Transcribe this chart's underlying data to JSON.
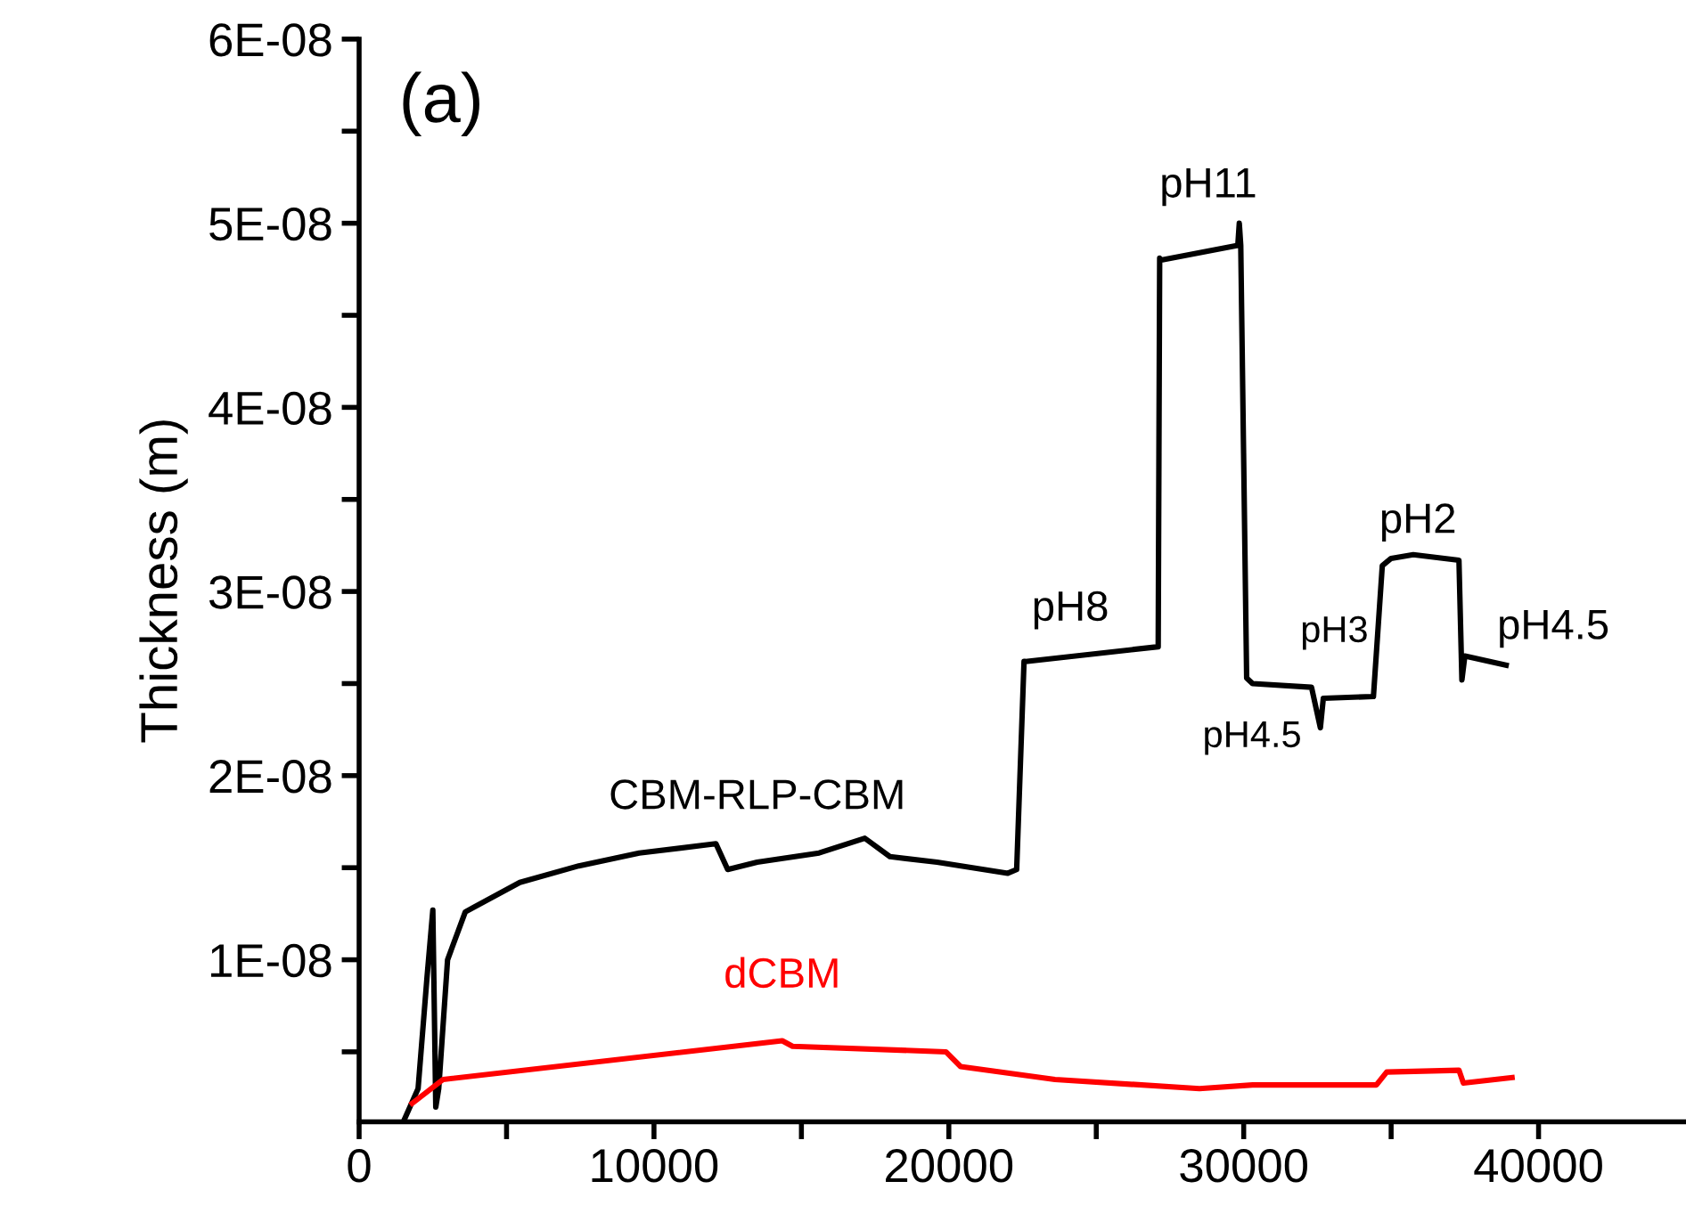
{
  "chart_data": {
    "type": "line",
    "ylabel": "Thickness (m)",
    "xlim": [
      0,
      45000
    ],
    "ylim": [
      1.2e-09,
      6e-08
    ],
    "xticks": [
      0,
      {
        "value": 5000,
        "label": null
      },
      10000,
      {
        "value": 15000,
        "label": null
      },
      20000,
      {
        "value": 25000,
        "label": null
      },
      30000,
      {
        "value": 35000,
        "label": null
      },
      40000
    ],
    "yticks": [
      {
        "value": 5e-09,
        "label": null
      },
      {
        "value": 1e-08,
        "label": "1E-08"
      },
      {
        "value": 1.5e-08,
        "label": null
      },
      {
        "value": 2e-08,
        "label": "2E-08"
      },
      {
        "value": 2.5e-08,
        "label": null
      },
      {
        "value": 3e-08,
        "label": "3E-08"
      },
      {
        "value": 3.5e-08,
        "label": null
      },
      {
        "value": 4e-08,
        "label": "4E-08"
      },
      {
        "value": 4.5e-08,
        "label": null
      },
      {
        "value": 5e-08,
        "label": "5E-08"
      },
      {
        "value": 5.5e-08,
        "label": null
      },
      {
        "value": 6e-08,
        "label": "6E-08"
      }
    ],
    "grid": false,
    "legend": false,
    "marker": "none",
    "line_style": "solid",
    "series": [
      {
        "name": "CBM-RLP-CBM",
        "color": "#000000",
        "x": [
          1500,
          2000,
          2300,
          2500,
          2600,
          2700,
          3000,
          3600,
          5450,
          7450,
          9500,
          12100,
          12500,
          13500,
          15600,
          17150,
          18000,
          19600,
          22000,
          22300,
          22550,
          22600,
          27100,
          27150,
          27200,
          29800,
          29850,
          29900,
          30100,
          30300,
          32300,
          32600,
          32700,
          34400,
          34700,
          35000,
          35750,
          37300,
          37400,
          37500,
          38900
        ],
        "values": [
          1.2e-09,
          3e-09,
          9e-09,
          1.27e-08,
          2e-09,
          3e-09,
          1e-08,
          1.26e-08,
          1.42e-08,
          1.51e-08,
          1.58e-08,
          1.63e-08,
          1.49e-08,
          1.53e-08,
          1.58e-08,
          1.66e-08,
          1.56e-08,
          1.53e-08,
          1.47e-08,
          1.49e-08,
          2.62e-08,
          2.62e-08,
          2.7e-08,
          4.81e-08,
          4.8e-08,
          4.88e-08,
          5e-08,
          4.88e-08,
          2.53e-08,
          2.5e-08,
          2.48e-08,
          2.26e-08,
          2.42e-08,
          2.43e-08,
          3.14e-08,
          3.18e-08,
          3.2e-08,
          3.17e-08,
          2.52e-08,
          2.65e-08,
          2.6e-08
        ]
      },
      {
        "name": "dCBM",
        "color": "#ff0000",
        "x": [
          1800,
          2850,
          14350,
          14700,
          19900,
          20400,
          23600,
          28500,
          30300,
          34500,
          34850,
          37300,
          37450,
          39100
        ],
        "values": [
          2.2e-09,
          3.5e-09,
          5.6e-09,
          5.3e-09,
          5e-09,
          4.2e-09,
          3.5e-09,
          3e-09,
          3.2e-09,
          3.2e-09,
          3.9e-09,
          4e-09,
          3.3e-09,
          3.6e-09
        ]
      }
    ],
    "annotations": [
      "(a)",
      "pH8",
      "pH11",
      "pH3",
      "pH4.5",
      "pH2",
      "pH4.5"
    ]
  }
}
